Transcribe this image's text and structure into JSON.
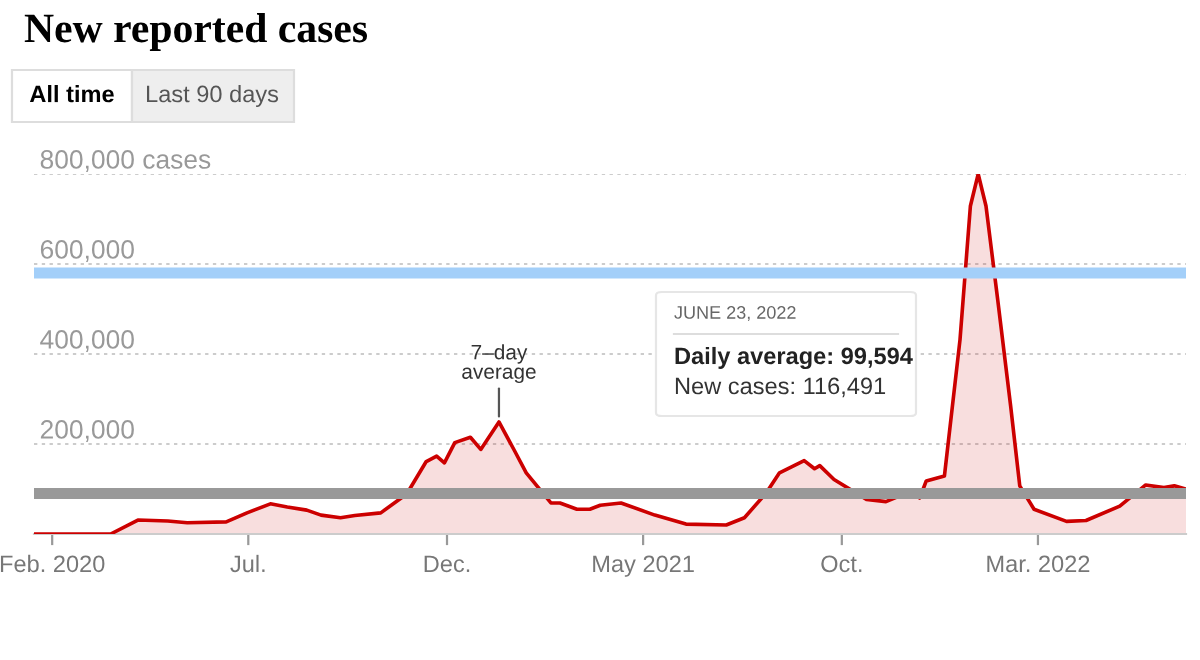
{
  "chart_data": {
    "type": "area",
    "title": "New reported cases",
    "x": [
      "2020-01-18",
      "2020-03-17",
      "2020-04-07",
      "2020-04-30",
      "2020-05-15",
      "2020-06-14",
      "2020-06-30",
      "2020-07-18",
      "2020-07-31",
      "2020-08-15",
      "2020-08-26",
      "2020-09-10",
      "2020-09-21",
      "2020-10-11",
      "2020-10-31",
      "2020-11-15",
      "2020-11-23",
      "2020-11-29",
      "2020-12-07",
      "2020-12-19",
      "2020-12-27",
      "2021-01-10",
      "2021-01-22",
      "2021-01-31",
      "2021-02-19",
      "2021-02-26",
      "2021-03-11",
      "2021-03-21",
      "2021-03-29",
      "2021-04-14",
      "2021-05-10",
      "2021-06-03",
      "2021-07-04",
      "2021-07-18",
      "2021-08-04",
      "2021-08-14",
      "2021-09-02",
      "2021-09-10",
      "2021-09-14",
      "2021-09-25",
      "2021-10-20",
      "2021-11-04",
      "2021-11-23",
      "2021-11-30",
      "2021-12-05",
      "2021-12-19",
      "2021-12-31",
      "2022-01-08",
      "2022-01-14",
      "2022-01-20",
      "2022-01-29",
      "2022-02-08",
      "2022-02-15",
      "2022-02-26",
      "2022-03-23",
      "2022-04-07",
      "2022-05-03",
      "2022-05-23",
      "2022-06-06",
      "2022-06-14",
      "2022-06-23"
    ],
    "series": [
      {
        "color": "#cc0000",
        "values": [
          0,
          0,
          31000,
          29000,
          25000,
          27000,
          47000,
          67000,
          60000,
          53000,
          42000,
          36000,
          41000,
          47000,
          89000,
          161000,
          173000,
          158000,
          203000,
          215000,
          188000,
          249000,
          185000,
          136000,
          69000,
          69000,
          55000,
          55000,
          64000,
          69000,
          42000,
          22000,
          20000,
          36000,
          92000,
          136000,
          163000,
          145000,
          152000,
          121000,
          77000,
          72000,
          95000,
          80000,
          118000,
          129000,
          432000,
          729000,
          800000,
          729000,
          521000,
          284000,
          107000,
          55000,
          28000,
          30000,
          62000,
          109000,
          103000,
          107000,
          99594
        ]
      }
    ],
    "xlim": [
      "2020-01-18",
      "2022-06-23"
    ],
    "xticks": [
      {
        "value": "2020-02-01",
        "label": "Feb. 2020"
      },
      {
        "value": "2020-07-01",
        "label": "Jul."
      },
      {
        "value": "2020-12-01",
        "label": "Dec."
      },
      {
        "value": "2021-05-01",
        "label": "May 2021"
      },
      {
        "value": "2021-10-01",
        "label": "Oct."
      },
      {
        "value": "2022-03-01",
        "label": "Mar. 2022"
      }
    ],
    "ylim": [
      0,
      800000
    ],
    "yticks": [
      {
        "value": 0,
        "label": null
      },
      {
        "value": 200000,
        "label": "200,000"
      },
      {
        "value": 400000,
        "label": "400,000"
      },
      {
        "value": 600000,
        "label": "600,000"
      },
      {
        "value": 800000,
        "label": "800,000 cases"
      }
    ],
    "grid": "y",
    "ref_lines": [
      {
        "axis": "y",
        "value": 580000,
        "label": null,
        "color": "#a3cff9"
      },
      {
        "axis": "y",
        "value": 90000,
        "label": null,
        "color": "#999999"
      }
    ],
    "annotations": [
      {
        "text": "7–day\naverage",
        "x": "2021-01-10",
        "y": 249000
      },
      "All time",
      "Last 90 days",
      "JUNE 23, 2022",
      "Daily average: 99,594",
      "New cases: 116,491"
    ]
  }
}
